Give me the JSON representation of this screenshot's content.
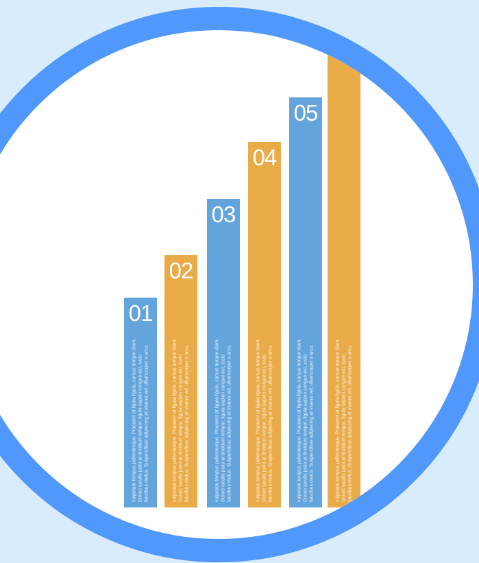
{
  "colors": {
    "background": "#d8ecfb",
    "ring": "#5098fb",
    "blue_bar": "#64a4dc",
    "orange_bar": "#e9ab48"
  },
  "bars": [
    {
      "label": "01",
      "color": "blue",
      "text": "vulputate tempus pellentesque. Praesent at ligula ligula, cursus tempor diam. Donec iaculis justo at tincidunt tempor, ligula sapien congue est, iusto faucibus metus. Suspendisse adipiscing at viverra vel, ullamcorper a arcu."
    },
    {
      "label": "02",
      "color": "orange",
      "text": "vulputate tempus pellentesque. Praesent at ligula ligula, cursus tempor diam. Donec iaculis justo at tincidunt tempor, ligula sapien congue est, iusto faucibus metus. Suspendisse adipiscing at viverra vel, ullamcorper a arcu."
    },
    {
      "label": "03",
      "color": "blue",
      "text": "vulputate tempus pellentesque. Praesent at ligula ligula, cursus tempor diam. Donec iaculis justo at tincidunt tempor, ligula sapien congue est, iusto faucibus metus. Suspendisse adipiscing at viverra vel, ullamcorper a arcu."
    },
    {
      "label": "04",
      "color": "orange",
      "text": "vulputate tempus pellentesque. Praesent at ligula ligula, cursus tempor diam. Donec iaculis justo at tincidunt tempor, ligula sapien congue est, iusto faucibus metus. Suspendisse adipiscing at viverra vel, ullamcorper a arcu."
    },
    {
      "label": "05",
      "color": "blue",
      "text": "vulputate tempus pellentesque. Praesent at ligula ligula, cursus tempor diam. Donec iaculis justo at tincidunt tempor, ligula sapien congue est, iusto faucibus metus. Suspendisse adipiscing at viverra vel, ullamcorper a arcu."
    },
    {
      "label": "",
      "color": "orange",
      "text": "vulputate tempus pellentesque. Praesent at ligula ligula, cursus tempor diam. Donec iaculis justo at tincidunt tempor, ligula sapien congue est, iusto faucibus metus. Suspendisse adipiscing at viverra vel, ullamcorper a arcu."
    }
  ]
}
